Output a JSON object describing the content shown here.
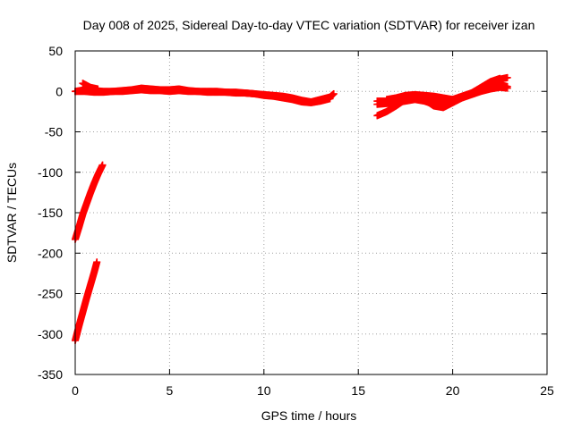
{
  "chart_data": {
    "type": "scatter",
    "title": "Day 008 of 2025, Sidereal Day-to-day VTEC variation (SDTVAR) for receiver izan",
    "xlabel": "GPS time / hours",
    "ylabel": "SDTVAR / TECUs",
    "xlim": [
      0,
      25
    ],
    "ylim": [
      -350,
      50
    ],
    "xticks": [
      "0",
      "5",
      "10",
      "15",
      "20",
      "25"
    ],
    "yticks": [
      "50",
      "0",
      "-50",
      "-100",
      "-150",
      "-200",
      "-250",
      "-300",
      "-350"
    ],
    "grid": true,
    "legend": "none",
    "marker": "+",
    "color": "#ff0000",
    "series": [
      {
        "x": [
          0.0,
          0.5,
          1.0,
          1.5,
          2.0,
          2.5,
          3.0,
          3.5,
          4.0,
          4.5,
          5.0,
          5.5,
          6.0,
          6.5,
          7.0,
          7.5,
          8.0,
          8.5,
          9.0,
          9.5,
          10.0,
          10.5,
          11.0,
          11.5,
          12.0,
          12.5,
          13.0,
          13.5,
          13.7
        ],
        "y": [
          0,
          2,
          1,
          0,
          0,
          1,
          2,
          4,
          3,
          2,
          2,
          3,
          1,
          0,
          0,
          0,
          -1,
          -1,
          -2,
          -3,
          -4,
          -5,
          -6,
          -8,
          -11,
          -13,
          -10,
          -7,
          -3
        ]
      },
      {
        "x": [
          0.0,
          0.5,
          1.0,
          1.5,
          2.0,
          2.5,
          3.0,
          3.5,
          4.0,
          4.5,
          5.0,
          5.5,
          6.0,
          6.5,
          7.0,
          7.5,
          8.0,
          8.5,
          9.0,
          9.5,
          10.0,
          10.5,
          11.0,
          11.5,
          12.0,
          12.5,
          13.0,
          13.5
        ],
        "y": [
          0,
          0,
          -1,
          -1,
          0,
          0,
          1,
          2,
          1,
          1,
          0,
          1,
          0,
          0,
          -1,
          -1,
          -1,
          -2,
          -2,
          -3,
          -5,
          -6,
          -8,
          -10,
          -13,
          -14,
          -12,
          -9
        ]
      },
      {
        "x": [
          0.4,
          0.8,
          1.2
        ],
        "y": [
          10,
          5,
          3
        ]
      },
      {
        "x": [
          16.0,
          16.5,
          17.0,
          17.5,
          18.0,
          18.5,
          19.0,
          19.5,
          20.0,
          20.5,
          21.0,
          21.5,
          22.0,
          22.5,
          22.9
        ],
        "y": [
          -12,
          -12,
          -10,
          -8,
          -6,
          -8,
          -10,
          -12,
          -10,
          -6,
          -2,
          4,
          10,
          15,
          17
        ]
      },
      {
        "x": [
          16.0,
          16.5,
          17.0,
          17.5,
          18.0,
          18.5,
          19.0,
          19.5,
          20.0,
          20.5,
          21.0,
          21.5,
          22.0,
          22.5,
          22.9
        ],
        "y": [
          -30,
          -25,
          -18,
          -10,
          -5,
          -10,
          -18,
          -20,
          -14,
          -8,
          -3,
          2,
          6,
          8,
          6
        ]
      },
      {
        "x": [
          16.5,
          17.0,
          17.5,
          18.0,
          18.5,
          19.0,
          19.5,
          20.0,
          20.5,
          21.0,
          21.5,
          22.0,
          22.5,
          22.9
        ],
        "y": [
          -10,
          -8,
          -5,
          -4,
          -5,
          -6,
          -8,
          -10,
          -8,
          -4,
          0,
          3,
          5,
          4
        ]
      },
      {
        "x": [
          16.0,
          16.5,
          17.0,
          17.5,
          18.0,
          18.5,
          19.0,
          19.5,
          20.0,
          20.5,
          21.0,
          21.5,
          22.0,
          22.5
        ],
        "y": [
          -16,
          -15,
          -14,
          -12,
          -10,
          -12,
          -16,
          -14,
          -10,
          -6,
          -2,
          5,
          12,
          16
        ]
      },
      {
        "x": [
          0.0,
          0.2,
          0.4,
          0.6,
          0.8,
          1.0,
          1.2,
          1.45
        ],
        "y": [
          -183,
          -168,
          -152,
          -139,
          -126,
          -114,
          -103,
          -91
        ]
      },
      {
        "x": [
          0.0,
          0.2,
          0.4,
          0.6,
          0.8,
          1.0,
          1.15
        ],
        "y": [
          -308,
          -290,
          -273,
          -256,
          -240,
          -224,
          -211
        ]
      }
    ]
  }
}
